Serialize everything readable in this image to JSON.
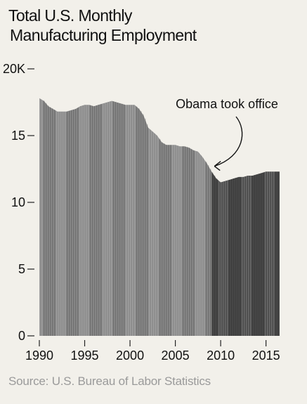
{
  "title": {
    "line1": "Total U.S. Monthly",
    "line2": "Manufacturing Employment"
  },
  "source": "Source: U.S. Bureau of Labor Statistics",
  "colors": {
    "background": "#f2f0ea",
    "area_pre": "#8a8a8a",
    "area_post": "#4a4a4a",
    "text": "#111111",
    "source_text": "#9a9a9a"
  },
  "chart_data": {
    "type": "area",
    "title": "Total U.S. Monthly Manufacturing Employment",
    "xlabel": "",
    "ylabel": "",
    "unit": "K",
    "xlim": [
      1990,
      2016.5
    ],
    "ylim": [
      0,
      20
    ],
    "x_ticks": [
      1990,
      1995,
      2000,
      2005,
      2010,
      2015
    ],
    "y_ticks": [
      {
        "value": 0,
        "label": "0"
      },
      {
        "value": 5,
        "label": "5"
      },
      {
        "value": 10,
        "label": "10"
      },
      {
        "value": 15,
        "label": "15"
      },
      {
        "value": 20,
        "label": "20K"
      }
    ],
    "grid": false,
    "x": [
      1990.0,
      1990.5,
      1991.0,
      1991.5,
      1992.0,
      1992.5,
      1993.0,
      1993.5,
      1994.0,
      1994.5,
      1995.0,
      1995.5,
      1996.0,
      1996.5,
      1997.0,
      1997.5,
      1998.0,
      1998.5,
      1999.0,
      1999.5,
      2000.0,
      2000.5,
      2001.0,
      2001.5,
      2002.0,
      2002.5,
      2003.0,
      2003.5,
      2004.0,
      2004.5,
      2005.0,
      2005.5,
      2006.0,
      2006.5,
      2007.0,
      2007.5,
      2008.0,
      2008.5,
      2009.0,
      2009.5,
      2010.0,
      2010.5,
      2011.0,
      2011.5,
      2012.0,
      2012.5,
      2013.0,
      2013.5,
      2014.0,
      2014.5,
      2015.0,
      2015.5,
      2016.0,
      2016.5
    ],
    "values": [
      17.8,
      17.6,
      17.2,
      17.0,
      16.8,
      16.8,
      16.8,
      16.9,
      17.0,
      17.2,
      17.3,
      17.3,
      17.2,
      17.3,
      17.4,
      17.5,
      17.6,
      17.5,
      17.4,
      17.3,
      17.3,
      17.3,
      17.0,
      16.5,
      15.6,
      15.3,
      15.0,
      14.5,
      14.3,
      14.3,
      14.3,
      14.2,
      14.2,
      14.1,
      13.9,
      13.8,
      13.4,
      12.9,
      12.3,
      11.8,
      11.5,
      11.6,
      11.7,
      11.8,
      11.9,
      11.9,
      12.0,
      12.0,
      12.1,
      12.2,
      12.3,
      12.3,
      12.3,
      12.3
    ],
    "annotations": [
      {
        "text": "Obama took office",
        "x": 2009.0,
        "y": 12.6
      }
    ],
    "highlight_start": 2009.0
  }
}
